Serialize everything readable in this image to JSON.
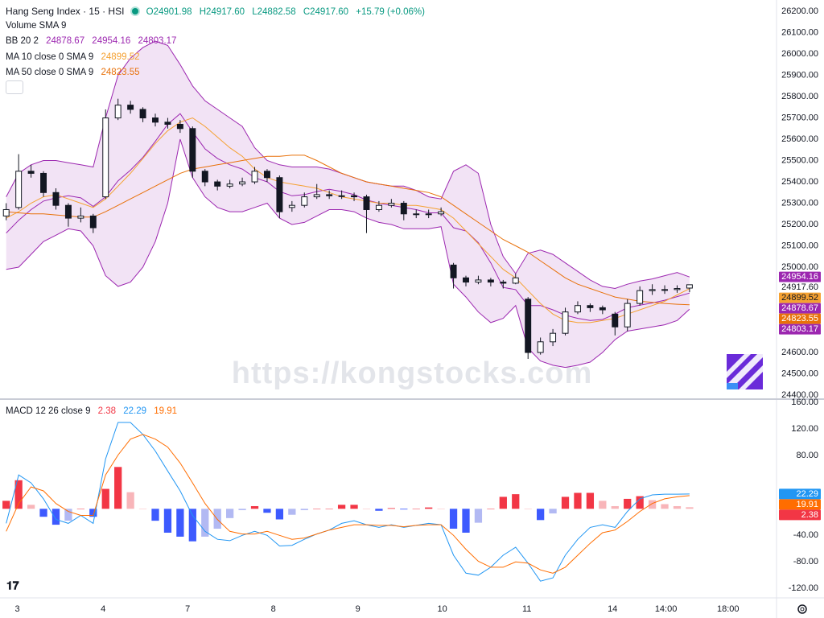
{
  "chart_data": [
    {
      "type": "candlestick",
      "title": "Hang Seng Index · 15 · HSI",
      "ohlc_labels": [
        "O24901.98",
        "H24917.60",
        "L24882.58",
        "C24917.60",
        "+15.79 (+0.06%)"
      ],
      "ohlc_color": "#089981",
      "volume_label": "Volume SMA 9",
      "watermark": "https://kongstocks.com",
      "up_color": "#ffffff",
      "down_color": "#131722",
      "wick_color": "#131722",
      "grid": false,
      "x": [
        0,
        1,
        2,
        3,
        4,
        5,
        6,
        7,
        8,
        9,
        10,
        11,
        12,
        13,
        14,
        15,
        16,
        17,
        18,
        19,
        20,
        21,
        22,
        23,
        24,
        25,
        26,
        27,
        28,
        29,
        30,
        31,
        32,
        33,
        34,
        35,
        36,
        37,
        38,
        39,
        40,
        41,
        42,
        43,
        44,
        45,
        46,
        47,
        48,
        49,
        50,
        51,
        52,
        53,
        54,
        55
      ],
      "xlim": [
        -0.5,
        62
      ],
      "ylim": [
        24385,
        26253
      ],
      "yticks": [
        {
          "value": 24400,
          "label": "24400.00"
        },
        {
          "value": 24500,
          "label": "24500.00"
        },
        {
          "value": 24600,
          "label": "24600.00"
        },
        {
          "value": 24700,
          "label": "24700.00"
        },
        {
          "value": 24800,
          "label": "24800.00"
        },
        {
          "value": 24900,
          "label": "24900.00"
        },
        {
          "value": 25000,
          "label": "25000.00"
        },
        {
          "value": 25100,
          "label": "25100.00"
        },
        {
          "value": 25200,
          "label": "25200.00"
        },
        {
          "value": 25300,
          "label": "25300.00"
        },
        {
          "value": 25400,
          "label": "25400.00"
        },
        {
          "value": 25500,
          "label": "25500.00"
        },
        {
          "value": 25600,
          "label": "25600.00"
        },
        {
          "value": 25700,
          "label": "25700.00"
        },
        {
          "value": 25800,
          "label": "25800.00"
        },
        {
          "value": 25900,
          "label": "25900.00"
        },
        {
          "value": 26000,
          "label": "26000.00"
        },
        {
          "value": 26100,
          "label": "26100.00"
        },
        {
          "value": 26200,
          "label": "26200.00"
        }
      ],
      "candles": {
        "open": [
          25240,
          25280,
          25450,
          25440,
          25350,
          25290,
          25230,
          25240,
          25330,
          25700,
          25760,
          25740,
          25700,
          25680,
          25670,
          25650,
          25450,
          25400,
          25380,
          25390,
          25400,
          25450,
          25420,
          25280,
          25290,
          25330,
          25340,
          25335,
          25335,
          25330,
          25270,
          25290,
          25300,
          25250,
          25250,
          25250,
          25010,
          24950,
          24930,
          24940,
          24930,
          24925,
          24850,
          24600,
          24650,
          24690,
          24790,
          24820,
          24810,
          24780,
          24720,
          24830,
          24890,
          24895,
          24895,
          24901.98
        ],
        "high": [
          25300,
          25530,
          25480,
          25450,
          25370,
          25300,
          25280,
          25250,
          25740,
          25790,
          25780,
          25750,
          25720,
          25700,
          25690,
          25660,
          25460,
          25410,
          25410,
          25420,
          25470,
          25460,
          25430,
          25310,
          25350,
          25390,
          25360,
          25360,
          25350,
          25340,
          25310,
          25320,
          25310,
          25270,
          25270,
          25280,
          25020,
          24960,
          24960,
          24950,
          24940,
          24970,
          24860,
          24670,
          24710,
          24810,
          24840,
          24830,
          24820,
          24790,
          24850,
          24910,
          24920,
          24915,
          24915,
          24917.6
        ],
        "low": [
          25220,
          25270,
          25420,
          25330,
          25270,
          25190,
          25210,
          25160,
          25320,
          25690,
          25720,
          25680,
          25660,
          25650,
          25630,
          25420,
          25380,
          25360,
          25370,
          25380,
          25390,
          25400,
          25230,
          25260,
          25280,
          25320,
          25320,
          25320,
          25310,
          25160,
          25260,
          25280,
          25220,
          25230,
          25230,
          25240,
          24900,
          24910,
          24920,
          24910,
          24900,
          24920,
          24570,
          24590,
          24630,
          24680,
          24780,
          24790,
          24780,
          24680,
          24700,
          24820,
          24870,
          24875,
          24880,
          24882.58
        ],
        "close": [
          25270,
          25450,
          25440,
          25350,
          25290,
          25230,
          25240,
          25185,
          25700,
          25760,
          25740,
          25700,
          25680,
          25670,
          25650,
          25450,
          25400,
          25380,
          25390,
          25400,
          25450,
          25420,
          25260,
          25290,
          25330,
          25340,
          25335,
          25335,
          25330,
          25270,
          25290,
          25300,
          25250,
          25250,
          25250,
          25260,
          24950,
          24930,
          24940,
          24930,
          24925,
          24950,
          24600,
          24650,
          24690,
          24790,
          24820,
          24810,
          24800,
          24720,
          24830,
          24890,
          24895,
          24895,
          24900,
          24917.6
        ]
      },
      "bollinger": {
        "name": "BB 20 2",
        "color": "#9c27b0",
        "fill": "rgba(156,39,176,0.13)",
        "legend_values": [
          "24878.67",
          "24954.16",
          "24803.17"
        ],
        "basis": [
          25160,
          25220,
          25270,
          25310,
          25325,
          25335,
          25325,
          25285,
          25330,
          25405,
          25455,
          25515,
          25590,
          25670,
          25720,
          25635,
          25555,
          25510,
          25480,
          25460,
          25420,
          25400,
          25355,
          25335,
          25340,
          25355,
          25365,
          25355,
          25340,
          25315,
          25300,
          25290,
          25280,
          25270,
          25255,
          25255,
          25185,
          25170,
          25115,
          25020,
          24905,
          24895,
          24820,
          24820,
          24800,
          24775,
          24760,
          24750,
          24755,
          24780,
          24810,
          24822,
          24832,
          24845,
          24862,
          24878.67
        ],
        "upper": [
          25330,
          25440,
          25480,
          25500,
          25500,
          25490,
          25480,
          25470,
          25700,
          25900,
          25980,
          26030,
          26060,
          26040,
          25950,
          25850,
          25780,
          25740,
          25700,
          25660,
          25560,
          25500,
          25480,
          25470,
          25470,
          25470,
          25460,
          25440,
          25420,
          25400,
          25390,
          25380,
          25380,
          25360,
          25330,
          25320,
          25450,
          25480,
          25440,
          25200,
          25050,
          24970,
          25065,
          25080,
          25060,
          25020,
          24980,
          24940,
          24910,
          24900,
          24920,
          24935,
          24945,
          24960,
          24975,
          24954.16
        ],
        "lower": [
          24990,
          25000,
          25060,
          25120,
          25150,
          25180,
          25170,
          25100,
          24960,
          24910,
          24930,
          25000,
          25120,
          25300,
          25600,
          25420,
          25330,
          25280,
          25260,
          25260,
          25280,
          25300,
          25230,
          25200,
          25210,
          25240,
          25270,
          25270,
          25260,
          25230,
          25210,
          25200,
          25180,
          25180,
          25180,
          25190,
          24920,
          24860,
          24790,
          24740,
          24760,
          24820,
          24620,
          24560,
          24540,
          24530,
          24540,
          24555,
          24600,
          24660,
          24700,
          24710,
          24720,
          24730,
          24750,
          24803.17
        ]
      },
      "moving_averages": [
        {
          "name": "MA 10 close 0 SMA 9",
          "color": "#f5a131",
          "legend_value": "24899.52",
          "values": [
            25230,
            25260,
            25300,
            25330,
            25340,
            25320,
            25300,
            25280,
            25320,
            25380,
            25440,
            25510,
            25580,
            25640,
            25680,
            25700,
            25660,
            25610,
            25560,
            25520,
            25460,
            25420,
            25400,
            25390,
            25380,
            25370,
            25350,
            25330,
            25320,
            25310,
            25300,
            25300,
            25290,
            25290,
            25280,
            25270,
            25230,
            25170,
            25110,
            25050,
            24990,
            24950,
            24890,
            24830,
            24780,
            24750,
            24740,
            24740,
            24750,
            24760,
            24780,
            24800,
            24820,
            24840,
            24870,
            24899.52
          ]
        },
        {
          "name": "MA 50 close 0 SMA 9",
          "color": "#e8710a",
          "legend_value": "24823.55",
          "values": [
            25260,
            25255,
            25250,
            25250,
            25245,
            25240,
            25235,
            25235,
            25260,
            25290,
            25320,
            25350,
            25380,
            25410,
            25440,
            25460,
            25470,
            25480,
            25490,
            25500,
            25510,
            25520,
            25520,
            25525,
            25525,
            25500,
            25470,
            25440,
            25420,
            25400,
            25390,
            25380,
            25370,
            25360,
            25350,
            25330,
            25290,
            25250,
            25210,
            25170,
            25130,
            25100,
            25070,
            25030,
            24990,
            24950,
            24920,
            24900,
            24880,
            24860,
            24850,
            24840,
            24835,
            24830,
            24826,
            24823.55
          ]
        }
      ],
      "price_labels": [
        {
          "value": 24954.16,
          "label": "24954.16",
          "color": "#9c27b0",
          "text_color": "#ffffff"
        },
        {
          "value": 24917.6,
          "label": "24917.60",
          "color": "#ffffff",
          "text_color": "#131722"
        },
        {
          "value": 24899.52,
          "label": "24899.52",
          "color": "#f5a131",
          "text_color": "#131722"
        },
        {
          "value": 24878.67,
          "label": "24878.67",
          "color": "#9c27b0",
          "text_color": "#ffffff"
        },
        {
          "value": 24823.55,
          "label": "24823.55",
          "color": "#e8710a",
          "text_color": "#ffffff"
        },
        {
          "value": 24803.17,
          "label": "24803.17",
          "color": "#9c27b0",
          "text_color": "#ffffff"
        }
      ]
    },
    {
      "type": "macd",
      "title": "MACD 12 26 close 9",
      "ylim": [
        -133,
        164
      ],
      "yticks": [
        {
          "value": 160,
          "label": "160.00"
        },
        {
          "value": 120,
          "label": "120.00"
        },
        {
          "value": 80,
          "label": "80.00"
        },
        {
          "value": -40,
          "label": "-40.00"
        },
        {
          "value": -80,
          "label": "-80.00"
        },
        {
          "value": -120,
          "label": "-120.00"
        }
      ],
      "xticks": [
        {
          "value": 0.9,
          "label": "3"
        },
        {
          "value": 7.8,
          "label": "4"
        },
        {
          "value": 14.6,
          "label": "7"
        },
        {
          "value": 21.5,
          "label": "8"
        },
        {
          "value": 28.3,
          "label": "9"
        },
        {
          "value": 35.1,
          "label": "10"
        },
        {
          "value": 41.9,
          "label": "11"
        },
        {
          "value": 48.8,
          "label": "14"
        },
        {
          "value": 53.1,
          "label": "14:00"
        },
        {
          "value": 58.1,
          "label": "18:00"
        }
      ],
      "histogram": {
        "legend_value": "2.38",
        "color": "#f23645",
        "colors": [
          "#f23645",
          "#f8b5b9",
          "#3d5afe",
          "#b2b9f3"
        ],
        "values": [
          12,
          43,
          6,
          -12,
          -24,
          -18,
          0,
          -12,
          30,
          63,
          25,
          0,
          -18,
          -36,
          -42,
          -49,
          -42,
          -30,
          -14,
          -2,
          4,
          -6,
          -16,
          -9,
          -2,
          0,
          0,
          6,
          6,
          0,
          -3,
          1,
          -1,
          0,
          2,
          0,
          -30,
          -36,
          -21,
          0,
          18,
          22,
          0,
          -17,
          -7,
          18,
          24,
          24,
          12,
          4,
          15,
          19,
          13,
          7,
          4,
          2.38
        ]
      },
      "series": [
        {
          "color": "#2196f3",
          "legend_value": "22.29",
          "values": [
            -22,
            51,
            39,
            15,
            -16,
            -22,
            -10,
            -22,
            75,
            130,
            130,
            112,
            87,
            57,
            27,
            -10,
            -34,
            -46,
            -48,
            -40,
            -34,
            -40,
            -56,
            -55,
            -46,
            -38,
            -32,
            -22,
            -18,
            -24,
            -28,
            -24,
            -28,
            -25,
            -22,
            -24,
            -70,
            -97,
            -100,
            -88,
            -70,
            -58,
            -82,
            -109,
            -104,
            -70,
            -46,
            -28,
            -24,
            -28,
            -4,
            15,
            21,
            22,
            22,
            22.29
          ]
        },
        {
          "color": "#ff6d00",
          "legend_value": "19.91",
          "values": [
            -34,
            8,
            33,
            27,
            8,
            -4,
            -10,
            -10,
            51,
            81,
            105,
            112,
            105,
            93,
            69,
            39,
            8,
            -16,
            -34,
            -38,
            -38,
            -34,
            -40,
            -46,
            -44,
            -38,
            -32,
            -28,
            -24,
            -24,
            -25,
            -25,
            -27,
            -25,
            -24,
            -24,
            -40,
            -61,
            -79,
            -88,
            -88,
            -80,
            -82,
            -92,
            -97,
            -88,
            -70,
            -52,
            -36,
            -32,
            -19,
            -4,
            8,
            15,
            18,
            19.91
          ]
        }
      ],
      "price_labels": [
        {
          "value": 22.29,
          "label": "22.29",
          "color": "#2196f3",
          "text_color": "#ffffff"
        },
        {
          "value": 19.91,
          "label": "19.91",
          "color": "#ff6d00",
          "text_color": "#ffffff"
        },
        {
          "value": 2.38,
          "label": "2.38",
          "color": "#f23645",
          "text_color": "#ffffff"
        }
      ]
    }
  ]
}
